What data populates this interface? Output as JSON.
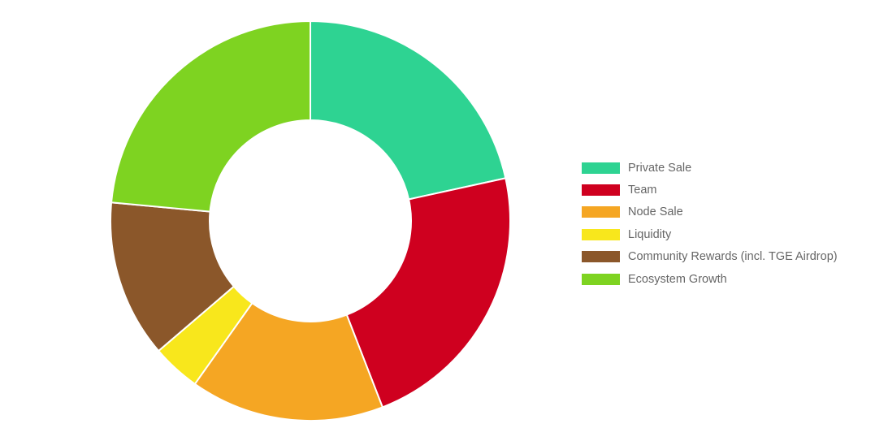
{
  "chart_data": {
    "type": "pie",
    "variant": "doughnut",
    "legend_position": "right",
    "series": [
      {
        "name": "Private Sale",
        "value": 22,
        "color": "#2ed392"
      },
      {
        "name": "Team",
        "value": 23,
        "color": "#cf001f"
      },
      {
        "name": "Node Sale",
        "value": 16,
        "color": "#f5a623"
      },
      {
        "name": "Liquidity",
        "value": 4,
        "color": "#f8e71c"
      },
      {
        "name": "Community Rewards (incl. TGE Airdrop)",
        "value": 13,
        "color": "#8b572a"
      },
      {
        "name": "Ecosystem Growth",
        "value": 24,
        "color": "#7ed321"
      }
    ]
  }
}
